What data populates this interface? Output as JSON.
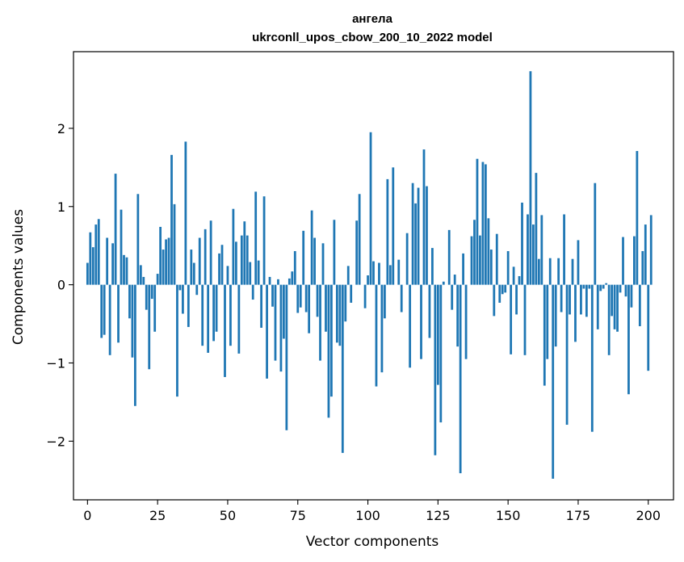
{
  "chart_data": {
    "type": "bar",
    "title": "ангела",
    "subtitle": "ukrconll_upos_cbow_200_10_2022 model",
    "xlabel": "Vector components",
    "ylabel": "Components values",
    "xlim": [
      -5,
      209
    ],
    "ylim": [
      -2.75,
      2.98
    ],
    "xticks": [
      0,
      25,
      50,
      75,
      100,
      125,
      150,
      175,
      200
    ],
    "yticks": [
      -2,
      -1,
      0,
      1,
      2
    ],
    "xtick_labels": [
      "0",
      "25",
      "50",
      "75",
      "100",
      "125",
      "150",
      "175",
      "200"
    ],
    "ytick_labels": [
      "−2",
      "−1",
      "0",
      "1",
      "2"
    ],
    "grid": false,
    "bar_color": "#1f77b4",
    "x_start": 0,
    "values": [
      0.28,
      0.67,
      0.48,
      0.77,
      0.84,
      -0.68,
      -0.64,
      0.6,
      -0.9,
      0.53,
      1.42,
      -0.74,
      0.96,
      0.38,
      0.35,
      -0.43,
      -0.93,
      -1.55,
      1.16,
      0.25,
      0.1,
      -0.32,
      -1.08,
      -0.18,
      -0.6,
      0.14,
      0.74,
      0.45,
      0.58,
      0.6,
      1.66,
      1.03,
      -1.43,
      -0.07,
      -0.37,
      1.83,
      -0.54,
      0.45,
      0.28,
      -0.13,
      0.6,
      -0.78,
      0.71,
      -0.87,
      0.82,
      -0.72,
      -0.6,
      0.4,
      0.51,
      -1.18,
      0.24,
      -0.78,
      0.97,
      0.55,
      -0.88,
      0.63,
      0.81,
      0.63,
      0.29,
      -0.19,
      1.19,
      0.31,
      -0.55,
      1.13,
      -1.2,
      0.1,
      -0.28,
      -0.97,
      0.07,
      -1.11,
      -0.69,
      -1.86,
      0.08,
      0.17,
      0.43,
      -0.36,
      -0.29,
      0.69,
      -0.35,
      -0.62,
      0.95,
      0.6,
      -0.41,
      -0.97,
      0.53,
      -0.6,
      -1.7,
      -1.43,
      0.83,
      -0.74,
      -0.78,
      -2.15,
      -0.47,
      0.24,
      -0.23,
      0.0,
      0.82,
      1.16,
      0.0,
      -0.3,
      0.12,
      1.95,
      0.3,
      -1.3,
      0.28,
      -1.12,
      -0.43,
      1.35,
      0.25,
      1.5,
      0.0,
      0.32,
      -0.35,
      0.0,
      0.66,
      -1.06,
      1.3,
      1.04,
      1.24,
      -0.95,
      1.73,
      1.26,
      -0.68,
      0.47,
      -2.18,
      -1.28,
      -1.76,
      0.04,
      0.0,
      0.7,
      -0.32,
      0.13,
      -0.79,
      -2.41,
      0.4,
      -0.95,
      0.0,
      0.62,
      0.83,
      1.61,
      0.63,
      1.57,
      1.54,
      0.85,
      0.45,
      -0.4,
      0.65,
      -0.23,
      -0.12,
      -0.1,
      0.43,
      -0.89,
      0.23,
      -0.38,
      0.11,
      1.05,
      -0.9,
      0.9,
      2.73,
      0.77,
      1.43,
      0.33,
      0.89,
      -1.29,
      -0.95,
      0.34,
      -2.48,
      -0.79,
      0.34,
      -0.35,
      0.9,
      -1.79,
      -0.38,
      0.33,
      -0.73,
      0.57,
      -0.38,
      -0.05,
      -0.41,
      -0.05,
      -1.88,
      1.3,
      -0.57,
      -0.08,
      -0.05,
      0.02,
      -0.9,
      -0.4,
      -0.57,
      -0.6,
      -0.1,
      0.61,
      -0.15,
      -1.4,
      -0.29,
      0.62,
      1.71,
      -0.53,
      0.43,
      0.77,
      -1.1,
      0.89
    ]
  }
}
